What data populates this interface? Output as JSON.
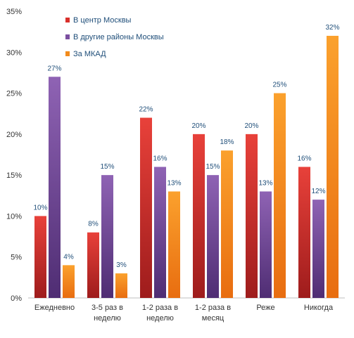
{
  "chart_data": {
    "type": "bar",
    "title": "",
    "xlabel": "",
    "ylabel": "",
    "ylim": [
      0,
      35
    ],
    "yticks": [
      "0%",
      "5%",
      "10%",
      "15%",
      "20%",
      "25%",
      "30%",
      "35%"
    ],
    "ytick_values": [
      0,
      5,
      10,
      15,
      20,
      25,
      30,
      35
    ],
    "grid": false,
    "legend_position": "top-left",
    "categories": [
      [
        "Ежедневно"
      ],
      [
        "3-5 раз в",
        "неделю"
      ],
      [
        "1-2 раза в",
        "неделю"
      ],
      [
        "1-2 раза в",
        "месяц"
      ],
      [
        "Реже"
      ],
      [
        "Никогда"
      ]
    ],
    "series": [
      {
        "name": "В центр Москвы",
        "color": "#d9302b",
        "values": [
          10,
          8,
          22,
          20,
          20,
          16
        ],
        "labels": [
          "10%",
          "8%",
          "22%",
          "20%",
          "20%",
          "16%"
        ]
      },
      {
        "name": "В другие районы Москвы",
        "color": "#7b4fa0",
        "values": [
          27,
          15,
          16,
          15,
          13,
          12
        ],
        "labels": [
          "27%",
          "15%",
          "16%",
          "15%",
          "13%",
          "12%"
        ]
      },
      {
        "name": "За МКАД",
        "color": "#f28b1c",
        "values": [
          4,
          3,
          13,
          18,
          25,
          32
        ],
        "labels": [
          "4%",
          "3%",
          "13%",
          "18%",
          "25%",
          "32%"
        ]
      }
    ]
  }
}
